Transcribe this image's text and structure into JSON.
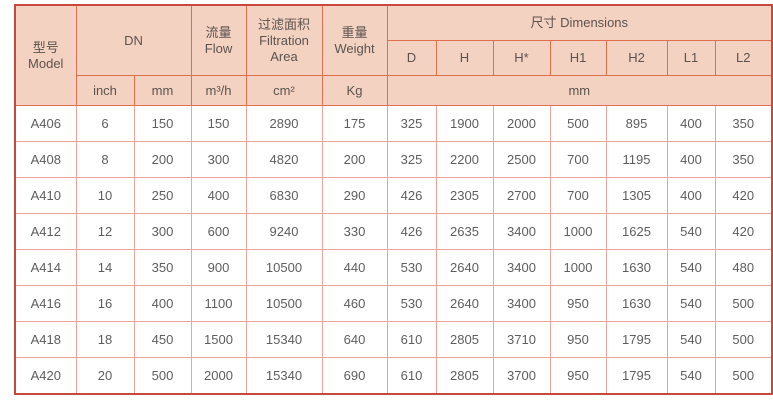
{
  "page": {
    "background": "#ffffff"
  },
  "table": {
    "colors": {
      "header_bg": "#f4d2c2",
      "header_border": "#df704e",
      "outer_border": "#c9483c",
      "body_border": "#eca49b",
      "text": "#5e5e5e"
    },
    "header": {
      "model_zh": "型号",
      "model_en": "Model",
      "dn": "DN",
      "flow_zh": "流量",
      "flow_en": "Flow",
      "filtration_zh": "过滤面积",
      "filtration_en_line1": "Filtration",
      "filtration_en_line2": "Area",
      "weight_zh": "重量",
      "weight_en": "Weight",
      "dimensions": "尺寸 Dimensions",
      "dim_columns": [
        "D",
        "H",
        "H*",
        "H1",
        "H2",
        "L1",
        "L2"
      ],
      "unit_inch": "inch",
      "unit_mm": "mm",
      "unit_flow": "m³/h",
      "unit_area": "cm²",
      "unit_weight": "Kg",
      "unit_dims": "mm"
    },
    "rows": [
      {
        "model": "A406",
        "inch": "6",
        "mm": "150",
        "flow": "150",
        "area": "2890",
        "weight": "175",
        "dims": [
          "325",
          "1900",
          "2000",
          "500",
          "895",
          "400",
          "350"
        ]
      },
      {
        "model": "A408",
        "inch": "8",
        "mm": "200",
        "flow": "300",
        "area": "4820",
        "weight": "200",
        "dims": [
          "325",
          "2200",
          "2500",
          "700",
          "1195",
          "400",
          "350"
        ]
      },
      {
        "model": "A410",
        "inch": "10",
        "mm": "250",
        "flow": "400",
        "area": "6830",
        "weight": "290",
        "dims": [
          "426",
          "2305",
          "2700",
          "700",
          "1305",
          "400",
          "420"
        ]
      },
      {
        "model": "A412",
        "inch": "12",
        "mm": "300",
        "flow": "600",
        "area": "9240",
        "weight": "330",
        "dims": [
          "426",
          "2635",
          "3400",
          "1000",
          "1625",
          "540",
          "420"
        ]
      },
      {
        "model": "A414",
        "inch": "14",
        "mm": "350",
        "flow": "900",
        "area": "10500",
        "weight": "440",
        "dims": [
          "530",
          "2640",
          "3400",
          "1000",
          "1630",
          "540",
          "480"
        ]
      },
      {
        "model": "A416",
        "inch": "16",
        "mm": "400",
        "flow": "1100",
        "area": "10500",
        "weight": "460",
        "dims": [
          "530",
          "2640",
          "3400",
          "950",
          "1630",
          "540",
          "500"
        ]
      },
      {
        "model": "A418",
        "inch": "18",
        "mm": "450",
        "flow": "1500",
        "area": "15340",
        "weight": "640",
        "dims": [
          "610",
          "2805",
          "3710",
          "950",
          "1795",
          "540",
          "500"
        ]
      },
      {
        "model": "A420",
        "inch": "20",
        "mm": "500",
        "flow": "2000",
        "area": "15340",
        "weight": "690",
        "dims": [
          "610",
          "2805",
          "3700",
          "950",
          "1795",
          "540",
          "500"
        ]
      }
    ]
  }
}
